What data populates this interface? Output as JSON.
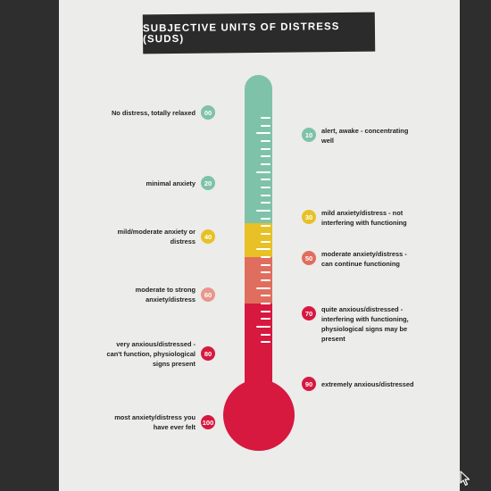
{
  "title": "SUBJECTIVE UNITS OF DISTRESS (SUDS)",
  "colors": {
    "teal": "#7fc2aa",
    "yellow": "#e7c125",
    "coral": "#e06e5e",
    "red": "#d7183f",
    "background": "#ececea",
    "frame": "#2e2e2e"
  },
  "levels": [
    {
      "value": "00",
      "lines": [
        "No distress, totally relaxed"
      ],
      "side": "left",
      "color": "#7fc2aa"
    },
    {
      "value": "10",
      "lines": [
        "alert, awake - concentrating",
        "well"
      ],
      "side": "right",
      "color": "#7fc2aa"
    },
    {
      "value": "20",
      "lines": [
        "minimal anxiety"
      ],
      "side": "left",
      "color": "#7fc2aa"
    },
    {
      "value": "30",
      "lines": [
        "mild anxiety/distress - not",
        "interfering with functioning"
      ],
      "side": "right",
      "color": "#e7c125"
    },
    {
      "value": "40",
      "lines": [
        "mild/moderate anxiety or",
        "distress"
      ],
      "side": "left",
      "color": "#e7c125"
    },
    {
      "value": "50",
      "lines": [
        "moderate anxiety/distress -",
        "can continue functioning"
      ],
      "side": "right",
      "color": "#e06e5e"
    },
    {
      "value": "60",
      "lines": [
        "moderate to strong",
        "anxiety/distress"
      ],
      "side": "left",
      "color": "#e8978b"
    },
    {
      "value": "70",
      "lines": [
        "quite anxious/distressed -",
        "interfering with functioning,",
        "physiological signs may be",
        "present"
      ],
      "side": "right",
      "color": "#d7183f"
    },
    {
      "value": "80",
      "lines": [
        "very anxious/distressed -",
        "can't function, physiological",
        "signs present"
      ],
      "side": "left",
      "color": "#d7183f"
    },
    {
      "value": "90",
      "lines": [
        "extremely anxious/distressed"
      ],
      "side": "right",
      "color": "#d7183f"
    },
    {
      "value": "100",
      "lines": [
        "most anxiety/distress you",
        "have ever felt"
      ],
      "side": "left",
      "color": "#d7183f"
    }
  ]
}
